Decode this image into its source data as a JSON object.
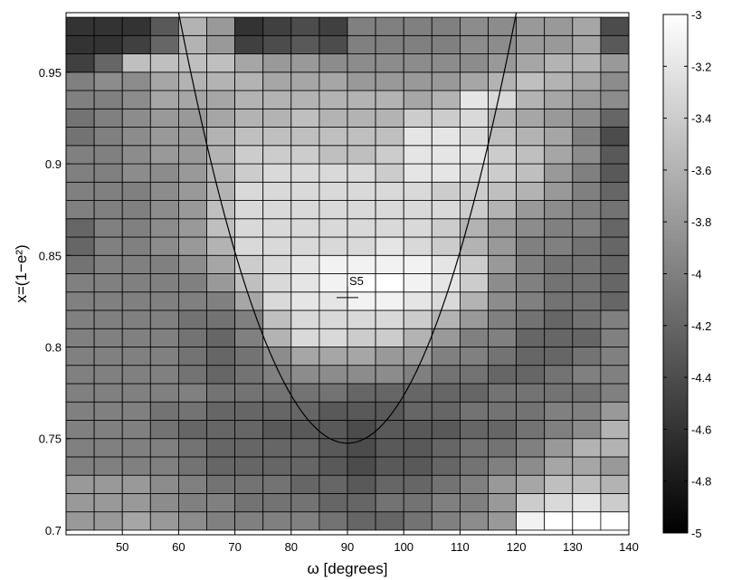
{
  "chart_data": {
    "type": "heatmap",
    "title": "",
    "xlabel": "ω [degrees]",
    "ylabel": "x=(1−e²)",
    "x_ticks": [
      "50",
      "60",
      "70",
      "80",
      "90",
      "100",
      "110",
      "120",
      "130",
      "140"
    ],
    "y_ticks": [
      "0.7",
      "0.75",
      "0.8",
      "0.85",
      "0.9",
      "0.95"
    ],
    "x_tick_values": [
      50,
      60,
      70,
      80,
      90,
      100,
      110,
      120,
      130,
      140
    ],
    "y_tick_values": [
      0.7,
      0.75,
      0.8,
      0.85,
      0.9,
      0.95
    ],
    "xlim": [
      40,
      140
    ],
    "ylim": [
      0.6975,
      0.9825
    ],
    "x_centers": [
      42.5,
      47.5,
      52.5,
      57.5,
      62.5,
      67.5,
      72.5,
      77.5,
      82.5,
      87.5,
      92.5,
      97.5,
      102.5,
      107.5,
      112.5,
      117.5,
      122.5,
      127.5,
      132.5,
      137.5
    ],
    "y_centers": [
      0.705,
      0.715,
      0.725,
      0.735,
      0.745,
      0.755,
      0.765,
      0.775,
      0.785,
      0.795,
      0.805,
      0.815,
      0.825,
      0.835,
      0.845,
      0.855,
      0.865,
      0.875,
      0.885,
      0.895,
      0.905,
      0.915,
      0.925,
      0.935,
      0.945,
      0.955,
      0.965,
      0.975
    ],
    "grid": true,
    "colorbar": {
      "range": [
        -5,
        -3
      ],
      "ticks": [
        "-3",
        "-3.2",
        "-3.4",
        "-3.6",
        "-3.8",
        "-4",
        "-4.2",
        "-4.4",
        "-4.6",
        "-4.8",
        "-5"
      ],
      "tick_values": [
        -3,
        -3.2,
        -3.4,
        -3.6,
        -3.8,
        -4,
        -4.2,
        -4.4,
        -4.6,
        -4.8,
        -5
      ],
      "colormap": "gray"
    },
    "values": [
      [
        -3.8,
        -3.8,
        -3.7,
        -3.8,
        -3.9,
        -4.0,
        -4.0,
        -4.0,
        -4.0,
        -4.1,
        -4.2,
        -4.2,
        -4.1,
        -4.0,
        -3.9,
        -3.8,
        -3.1,
        -3.0,
        -3.0,
        -3.0
      ],
      [
        -3.8,
        -3.8,
        -3.8,
        -3.9,
        -4.0,
        -4.0,
        -4.1,
        -4.1,
        -4.1,
        -4.2,
        -4.2,
        -4.1,
        -4.1,
        -4.0,
        -4.0,
        -3.8,
        -3.4,
        -3.3,
        -3.2,
        -3.4
      ],
      [
        -3.8,
        -3.8,
        -3.8,
        -3.9,
        -4.0,
        -4.1,
        -4.1,
        -4.1,
        -4.2,
        -4.2,
        -4.3,
        -4.2,
        -4.2,
        -4.1,
        -4.0,
        -3.8,
        -3.7,
        -3.5,
        -3.5,
        -3.6
      ],
      [
        -4.0,
        -4.0,
        -4.0,
        -4.0,
        -4.1,
        -4.2,
        -4.2,
        -4.2,
        -4.2,
        -4.3,
        -4.4,
        -4.3,
        -4.3,
        -4.2,
        -4.1,
        -4.0,
        -3.9,
        -3.7,
        -3.7,
        -3.8
      ],
      [
        -4.0,
        -4.0,
        -4.0,
        -4.0,
        -4.1,
        -4.2,
        -4.2,
        -4.2,
        -4.2,
        -4.3,
        -4.4,
        -4.3,
        -4.3,
        -4.2,
        -4.1,
        -4.1,
        -4.0,
        -3.8,
        -3.6,
        -3.6
      ],
      [
        -4.0,
        -4.0,
        -4.0,
        -4.1,
        -4.2,
        -4.2,
        -4.2,
        -4.3,
        -4.3,
        -4.3,
        -4.4,
        -4.3,
        -4.3,
        -4.3,
        -4.2,
        -4.2,
        -4.1,
        -4.0,
        -3.9,
        -3.6
      ],
      [
        -4.0,
        -4.0,
        -4.0,
        -4.1,
        -4.1,
        -4.2,
        -4.2,
        -4.2,
        -4.2,
        -4.3,
        -4.3,
        -4.3,
        -4.2,
        -4.2,
        -4.1,
        -4.1,
        -4.1,
        -4.0,
        -4.0,
        -3.8
      ],
      [
        -4.0,
        -4.0,
        -4.0,
        -4.0,
        -4.0,
        -4.1,
        -4.1,
        -4.1,
        -4.1,
        -4.1,
        -4.2,
        -4.2,
        -4.2,
        -4.2,
        -4.2,
        -4.1,
        -4.1,
        -4.1,
        -4.1,
        -4.0
      ],
      [
        -4.0,
        -4.0,
        -4.0,
        -4.0,
        -4.1,
        -4.2,
        -4.1,
        -4.0,
        -3.9,
        -3.9,
        -3.9,
        -3.9,
        -4.0,
        -4.1,
        -4.1,
        -4.2,
        -4.2,
        -4.1,
        -4.0,
        -4.0
      ],
      [
        -4.0,
        -4.0,
        -4.0,
        -4.0,
        -4.1,
        -4.2,
        -4.1,
        -3.9,
        -3.7,
        -3.7,
        -3.7,
        -3.8,
        -3.8,
        -4.0,
        -4.0,
        -4.1,
        -4.2,
        -4.2,
        -4.1,
        -4.0
      ],
      [
        -4.0,
        -4.0,
        -4.0,
        -4.0,
        -4.1,
        -4.2,
        -4.0,
        -3.6,
        -3.3,
        -3.3,
        -3.4,
        -3.4,
        -3.6,
        -3.8,
        -4.0,
        -4.0,
        -4.2,
        -4.2,
        -4.2,
        -4.0
      ],
      [
        -4.0,
        -4.0,
        -4.0,
        -4.0,
        -4.1,
        -4.1,
        -4.0,
        -3.5,
        -3.3,
        -3.3,
        -3.3,
        -3.3,
        -3.4,
        -3.6,
        -3.8,
        -4.0,
        -4.1,
        -4.2,
        -4.1,
        -4.0
      ],
      [
        -4.0,
        -4.0,
        -4.0,
        -4.0,
        -4.0,
        -4.0,
        -3.7,
        -3.3,
        -3.2,
        -3.2,
        -3.1,
        -3.1,
        -3.2,
        -3.3,
        -3.6,
        -3.9,
        -4.0,
        -4.1,
        -4.1,
        -4.2
      ],
      [
        -4.0,
        -4.0,
        -4.0,
        -4.0,
        -4.0,
        -3.8,
        -3.5,
        -3.3,
        -3.2,
        -3.1,
        -3.0,
        -3.0,
        -3.1,
        -3.2,
        -3.4,
        -3.9,
        -4.0,
        -4.1,
        -4.1,
        -4.2
      ],
      [
        -4.1,
        -4.0,
        -4.0,
        -4.0,
        -3.9,
        -3.7,
        -3.4,
        -3.3,
        -3.2,
        -3.1,
        -3.1,
        -3.1,
        -3.1,
        -3.2,
        -3.4,
        -3.8,
        -4.0,
        -4.1,
        -4.1,
        -4.2
      ],
      [
        -4.2,
        -4.0,
        -4.0,
        -3.9,
        -3.8,
        -3.6,
        -3.3,
        -3.3,
        -3.3,
        -3.3,
        -3.3,
        -3.2,
        -3.3,
        -3.4,
        -3.6,
        -3.8,
        -4.0,
        -4.0,
        -4.1,
        -4.2
      ],
      [
        -4.2,
        -4.0,
        -4.0,
        -3.9,
        -3.8,
        -3.5,
        -3.3,
        -3.3,
        -3.3,
        -3.3,
        -3.3,
        -3.3,
        -3.3,
        -3.4,
        -3.6,
        -3.8,
        -3.9,
        -4.0,
        -4.0,
        -4.2
      ],
      [
        -4.0,
        -4.0,
        -4.0,
        -3.9,
        -3.8,
        -3.5,
        -3.3,
        -3.3,
        -3.3,
        -3.3,
        -3.3,
        -3.3,
        -3.3,
        -3.3,
        -3.4,
        -3.6,
        -3.8,
        -3.9,
        -4.0,
        -4.1
      ],
      [
        -4.0,
        -4.0,
        -4.0,
        -3.9,
        -3.8,
        -3.6,
        -3.3,
        -3.3,
        -3.3,
        -3.3,
        -3.3,
        -3.3,
        -3.3,
        -3.4,
        -3.4,
        -3.5,
        -3.6,
        -3.8,
        -4.0,
        -4.2
      ],
      [
        -4.0,
        -4.0,
        -3.9,
        -3.9,
        -3.8,
        -3.6,
        -3.4,
        -3.3,
        -3.3,
        -3.3,
        -3.3,
        -3.4,
        -3.2,
        -3.2,
        -3.3,
        -3.4,
        -3.5,
        -3.8,
        -4.0,
        -4.3
      ],
      [
        -4.0,
        -4.0,
        -3.9,
        -3.8,
        -3.8,
        -3.6,
        -3.4,
        -3.4,
        -3.4,
        -3.5,
        -3.5,
        -3.4,
        -3.2,
        -3.2,
        -3.2,
        -3.4,
        -3.5,
        -3.7,
        -3.9,
        -4.3
      ],
      [
        -4.1,
        -4.0,
        -3.9,
        -3.8,
        -3.8,
        -3.6,
        -3.5,
        -3.5,
        -3.5,
        -3.5,
        -3.5,
        -3.5,
        -3.2,
        -3.2,
        -3.3,
        -3.5,
        -3.6,
        -3.7,
        -4.0,
        -4.4
      ],
      [
        -4.1,
        -4.0,
        -3.9,
        -3.8,
        -3.8,
        -3.7,
        -3.6,
        -3.6,
        -3.5,
        -3.6,
        -3.6,
        -3.6,
        -3.4,
        -3.4,
        -3.3,
        -3.6,
        -3.7,
        -3.8,
        -3.9,
        -4.2
      ],
      [
        -4.0,
        -4.0,
        -3.9,
        -3.7,
        -3.7,
        -3.7,
        -3.6,
        -3.6,
        -3.6,
        -3.6,
        -3.6,
        -3.6,
        -3.7,
        -3.6,
        -3.2,
        -3.3,
        -3.6,
        -3.7,
        -3.8,
        -3.9
      ],
      [
        -4.0,
        -3.9,
        -3.9,
        -3.7,
        -3.6,
        -3.6,
        -3.6,
        -3.7,
        -3.7,
        -3.7,
        -3.8,
        -3.8,
        -3.8,
        -3.8,
        -3.7,
        -3.6,
        -3.5,
        -3.6,
        -3.7,
        -3.9
      ],
      [
        -4.5,
        -4.2,
        -3.5,
        -3.5,
        -3.5,
        -3.5,
        -3.7,
        -3.8,
        -3.8,
        -3.9,
        -3.9,
        -3.9,
        -3.9,
        -3.9,
        -3.9,
        -3.8,
        -3.7,
        -3.6,
        -3.6,
        -3.8
      ],
      [
        -4.6,
        -4.6,
        -4.5,
        -4.2,
        -3.6,
        -3.8,
        -4.5,
        -4.4,
        -4.3,
        -4.4,
        -4.0,
        -4.0,
        -4.0,
        -4.0,
        -3.9,
        -3.9,
        -3.8,
        -3.8,
        -3.7,
        -4.3
      ],
      [
        -4.6,
        -4.6,
        -4.6,
        -4.3,
        -3.6,
        -3.8,
        -4.6,
        -4.5,
        -4.4,
        -4.5,
        -4.0,
        -4.0,
        -4.0,
        -4.0,
        -3.9,
        -3.9,
        -3.8,
        -3.8,
        -3.7,
        -4.4
      ]
    ],
    "curve": {
      "vertex": [
        90,
        0.7475
      ],
      "value_at_60": 0.9825
    },
    "annotations": [
      {
        "text": "S5",
        "x": 90,
        "y": 0.827,
        "marker": "plus"
      }
    ]
  }
}
